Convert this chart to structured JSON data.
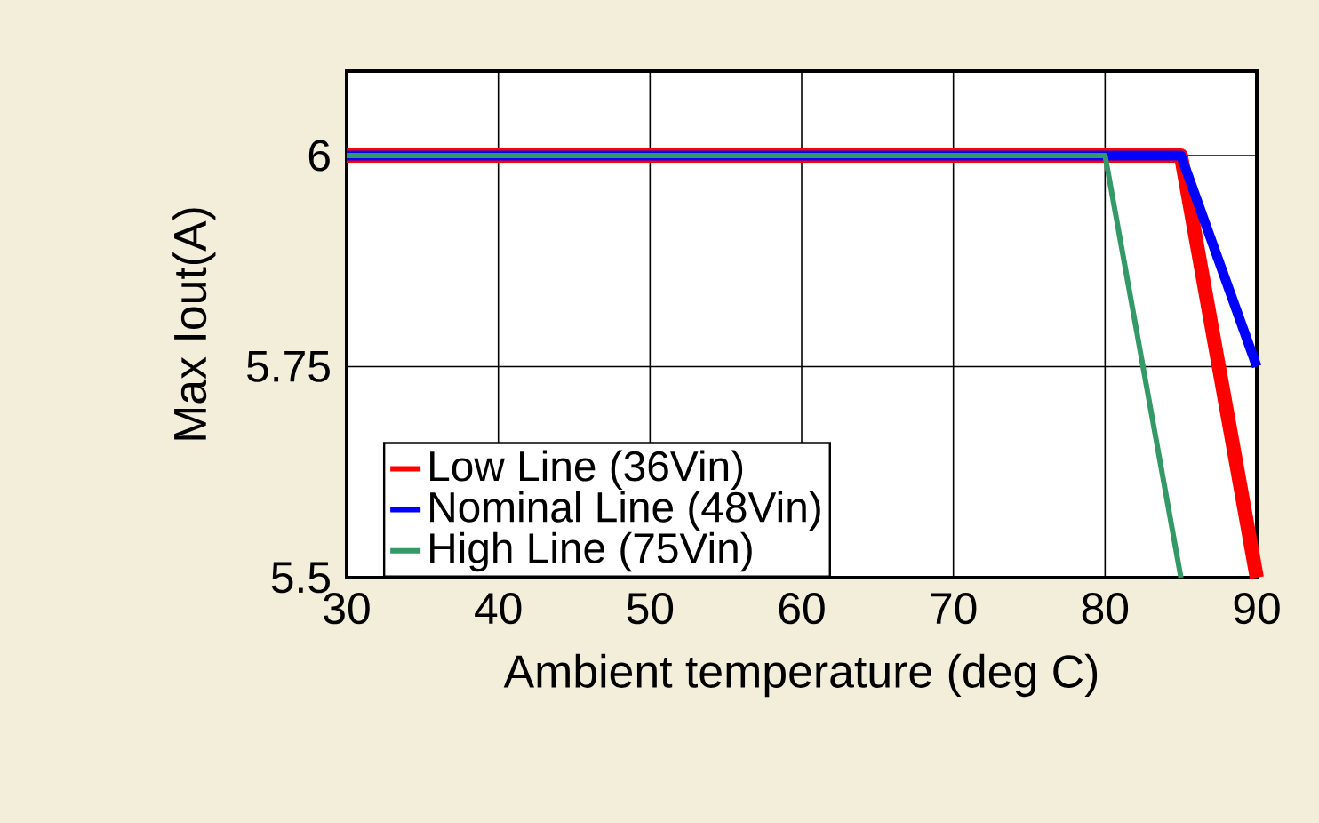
{
  "chart_data": {
    "type": "line",
    "xlabel": "Ambient temperature (deg C)",
    "ylabel": "Max Iout(A)",
    "series": [
      {
        "name": "Low Line (36Vin)",
        "color": "#ff0000",
        "x": [
          30,
          85,
          90
        ],
        "values": [
          6,
          6,
          5.5
        ]
      },
      {
        "name": "Nominal Line (48Vin)",
        "color": "#0000ff",
        "x": [
          30,
          85,
          90
        ],
        "values": [
          6,
          6,
          5.75
        ]
      },
      {
        "name": "High Line (75Vin)",
        "color": "#339966",
        "x": [
          30,
          80,
          85
        ],
        "values": [
          6,
          6,
          5.5
        ]
      }
    ],
    "xlim": [
      30,
      90
    ],
    "ylim": [
      5.5,
      6.1
    ],
    "xticks": [
      30,
      40,
      50,
      60,
      70,
      80,
      90
    ],
    "yticks": [
      5.5,
      5.75,
      6
    ],
    "grid": true,
    "legend": "bottom left",
    "marker": "none",
    "line_style": "solid"
  }
}
